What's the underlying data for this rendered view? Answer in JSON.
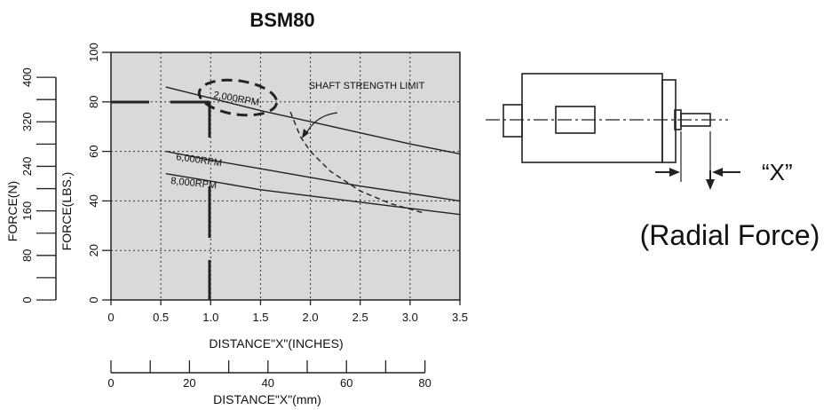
{
  "chart_data": {
    "type": "line",
    "title": "BSM80",
    "xlabel": "DISTANCE\"X\"(INCHES)",
    "ylabel": "FORCE(LBS.)",
    "secondary_xlabel": "DISTANCE\"X\"(mm)",
    "secondary_ylabel": "FORCE(N)",
    "xlim": [
      0,
      3.5
    ],
    "ylim": [
      0,
      100
    ],
    "secondary_xlim": [
      0,
      88.9
    ],
    "secondary_ylim": [
      0,
      444.8
    ],
    "x_ticks": [
      "0",
      "0.5",
      "1.0",
      "1.5",
      "2.0",
      "2.5",
      "3.0",
      "3.5"
    ],
    "y_ticks": [
      "0",
      "20",
      "40",
      "60",
      "80",
      "100"
    ],
    "secondary_x_ticks": [
      "0",
      "20",
      "40",
      "60",
      "80"
    ],
    "secondary_y_ticks": [
      "0",
      "80",
      "160",
      "240",
      "320",
      "400"
    ],
    "grid": true,
    "series": [
      {
        "name": "2,000RPM",
        "x": [
          0.55,
          1.0,
          1.5,
          2.0,
          2.5,
          3.0,
          3.5
        ],
        "y": [
          86,
          81.5,
          76.5,
          72,
          67.5,
          63,
          59
        ]
      },
      {
        "name": "6,000RPM",
        "x": [
          0.55,
          1.0,
          1.5,
          2.0,
          2.5,
          3.0,
          3.5
        ],
        "y": [
          60,
          56.5,
          53,
          49.5,
          46,
          43,
          40
        ]
      },
      {
        "name": "8,000RPM",
        "x": [
          0.55,
          1.0,
          1.5,
          2.0,
          2.5,
          3.0,
          3.5
        ],
        "y": [
          51,
          48,
          44.5,
          42,
          39.5,
          37,
          34.5
        ]
      },
      {
        "name": "SHAFT STRENGTH LIMIT",
        "style": "dashed",
        "x": [
          1.8,
          1.9,
          2.0,
          2.2,
          2.5,
          2.8,
          3.15
        ],
        "y": [
          76,
          66,
          60,
          52,
          44,
          39,
          35
        ]
      }
    ],
    "annotations": [
      "SHAFT STRENGTH LIMIT"
    ]
  },
  "diagram": {
    "x_label": "“X”",
    "caption": "(Radial Force)"
  }
}
